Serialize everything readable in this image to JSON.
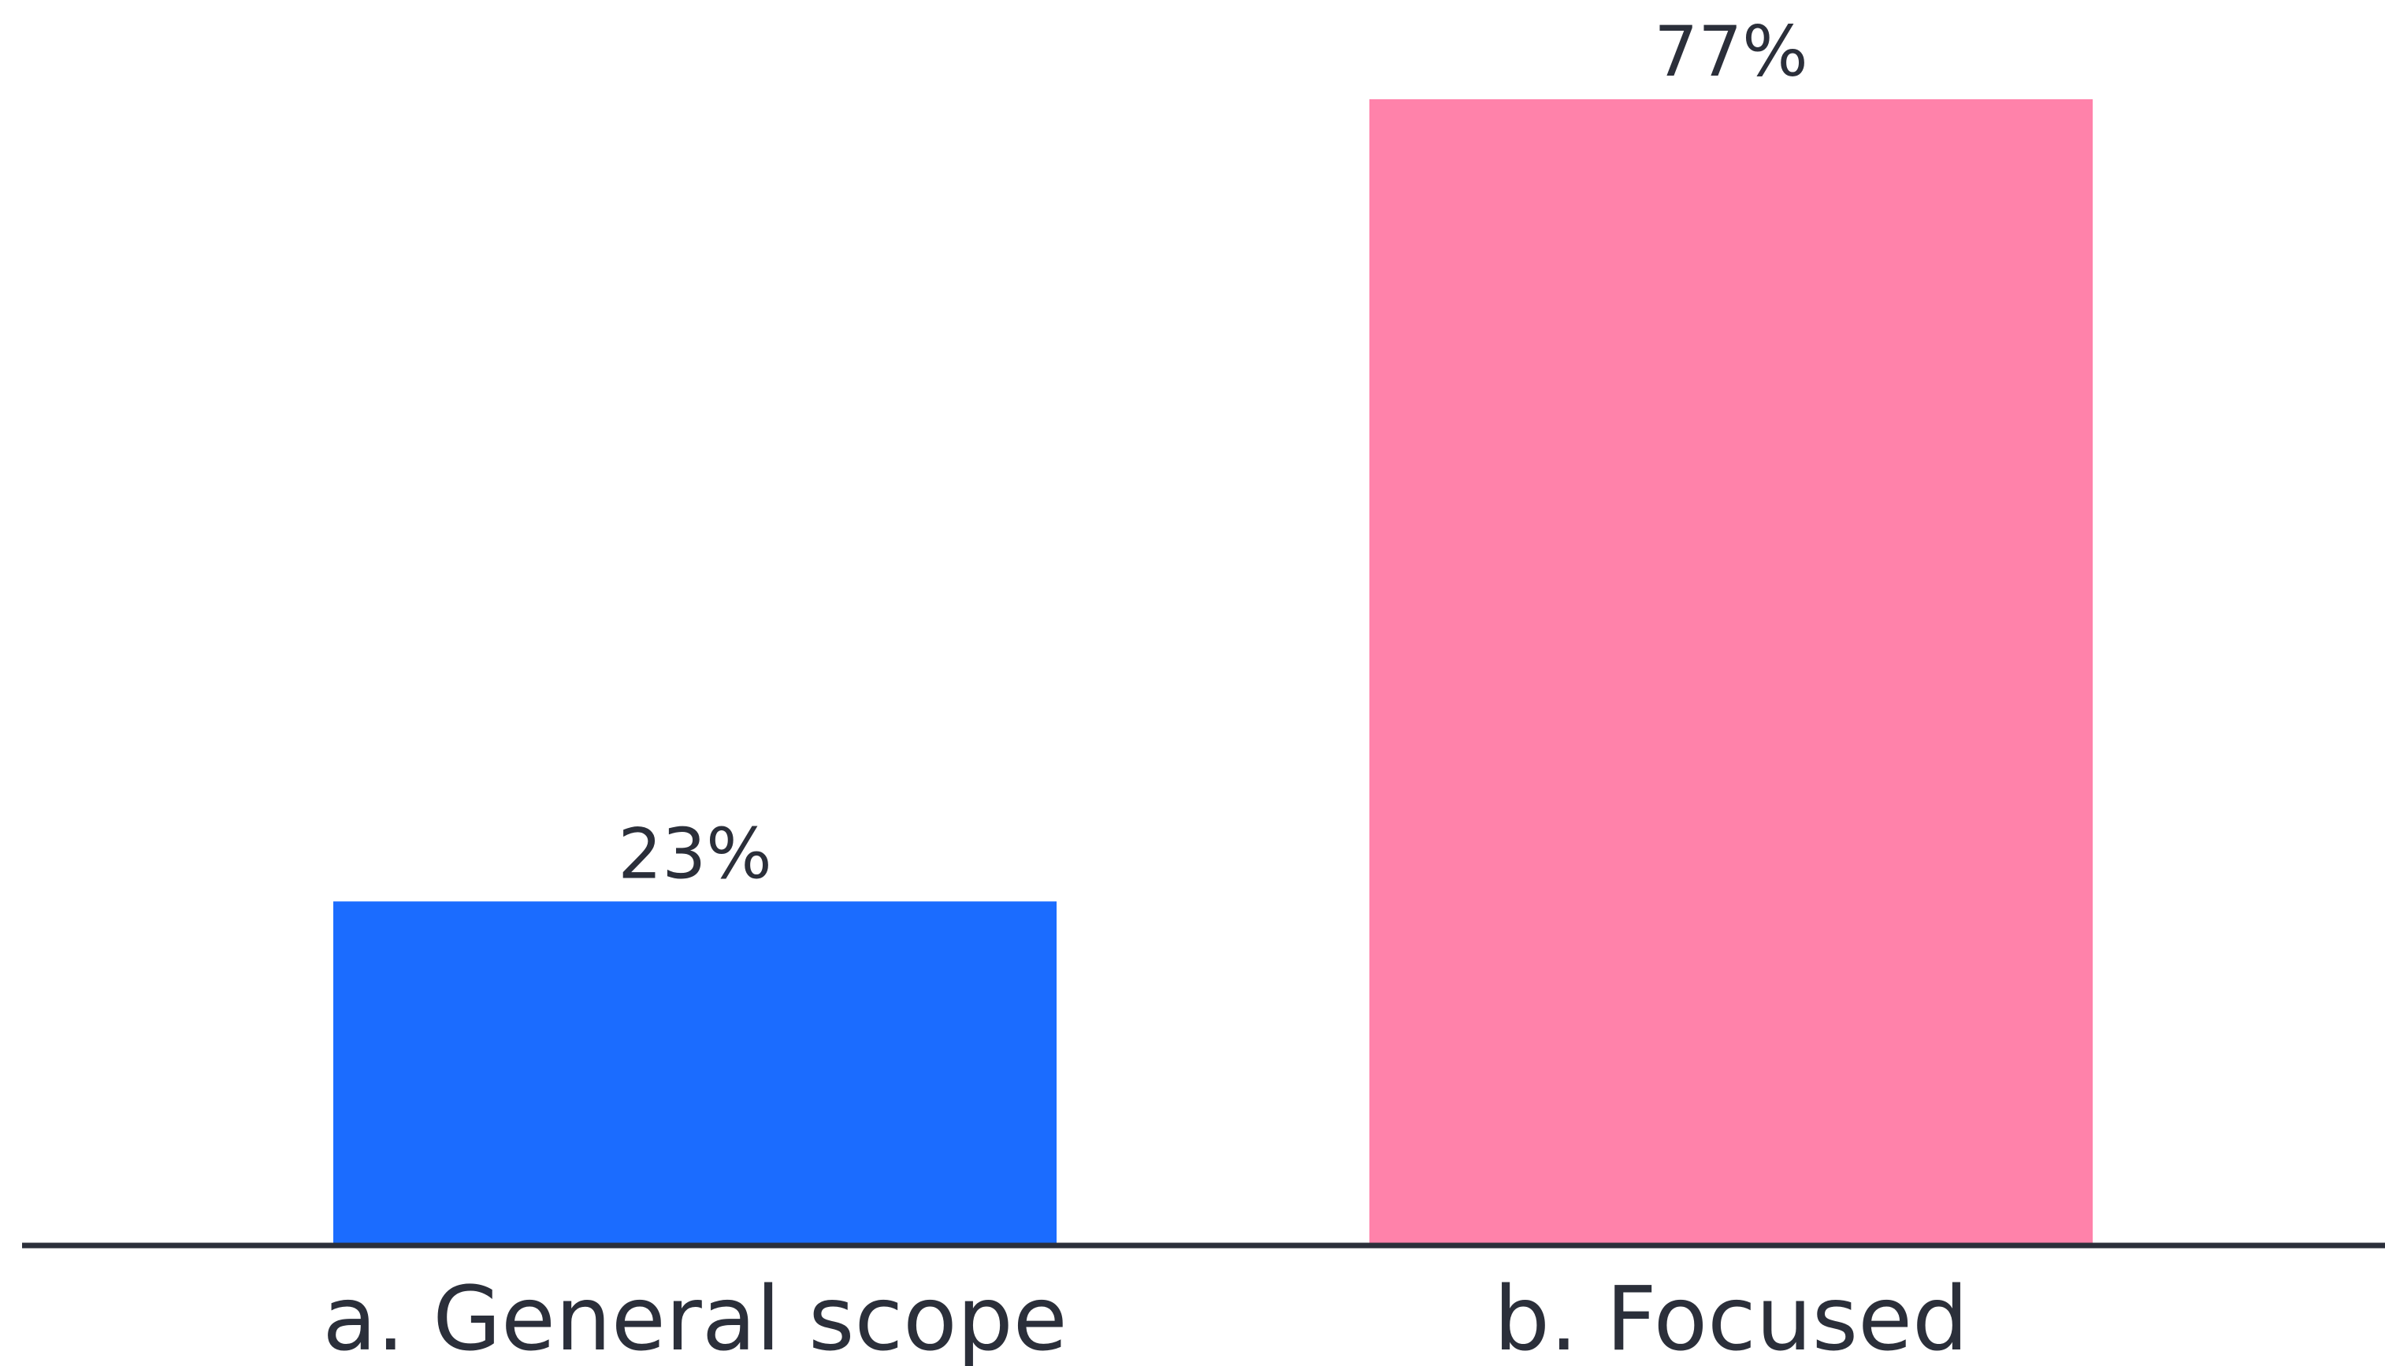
{
  "chart_data": {
    "type": "bar",
    "categories": [
      "a. General scope",
      "b. Focused"
    ],
    "values": [
      23,
      77
    ],
    "value_labels": [
      "23%",
      "77%"
    ],
    "colors": [
      "#1b6cff",
      "#ff82aa"
    ],
    "axis_color": "#2b2f3a",
    "ylim": [
      0,
      77
    ],
    "grid": false,
    "legend": "none"
  }
}
